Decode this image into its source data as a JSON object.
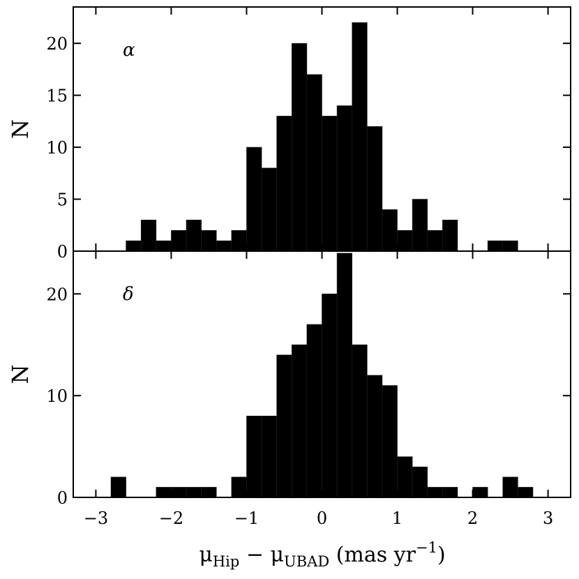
{
  "chart_data": [
    {
      "type": "bar",
      "panel_label": "α",
      "ylabel": "N",
      "xlim": [
        -3.3,
        3.3
      ],
      "ylim": [
        0,
        23.5
      ],
      "bin_width": 0.2,
      "bin_start": -2.6,
      "values": [
        1,
        3,
        1,
        2,
        3,
        2,
        1,
        2,
        10,
        8,
        13,
        20,
        17,
        13,
        14,
        22,
        12,
        4,
        2,
        5,
        2,
        3,
        0,
        0,
        1,
        1
      ],
      "yticks": [
        0,
        5,
        10,
        15,
        20
      ],
      "xticks": [
        -3,
        -2,
        -1,
        0,
        1,
        2,
        3
      ]
    },
    {
      "type": "bar",
      "panel_label": "δ",
      "ylabel": "N",
      "xlim": [
        -3.3,
        3.3
      ],
      "ylim": [
        0,
        24.2
      ],
      "bin_width": 0.2,
      "bin_start": -2.8,
      "values": [
        2,
        0,
        0,
        1,
        1,
        1,
        1,
        0,
        2,
        8,
        8,
        14,
        15,
        17,
        20,
        24,
        15,
        12,
        11,
        4,
        3,
        1,
        1,
        0,
        1,
        0,
        2,
        1
      ],
      "yticks": [
        0,
        10,
        20
      ],
      "xticks": [
        -3,
        -2,
        -1,
        0,
        1,
        2,
        3
      ],
      "xtick_labels": [
        "−3",
        "−2",
        "−1",
        "0",
        "1",
        "2",
        "3"
      ]
    }
  ],
  "xlabel": {
    "mu": "μ",
    "sub1": "Hip",
    "minus": " − ",
    "sub2": "UBAD",
    "unit_start": " (mas yr",
    "unit_exp": "−1",
    "unit_end": ")"
  }
}
